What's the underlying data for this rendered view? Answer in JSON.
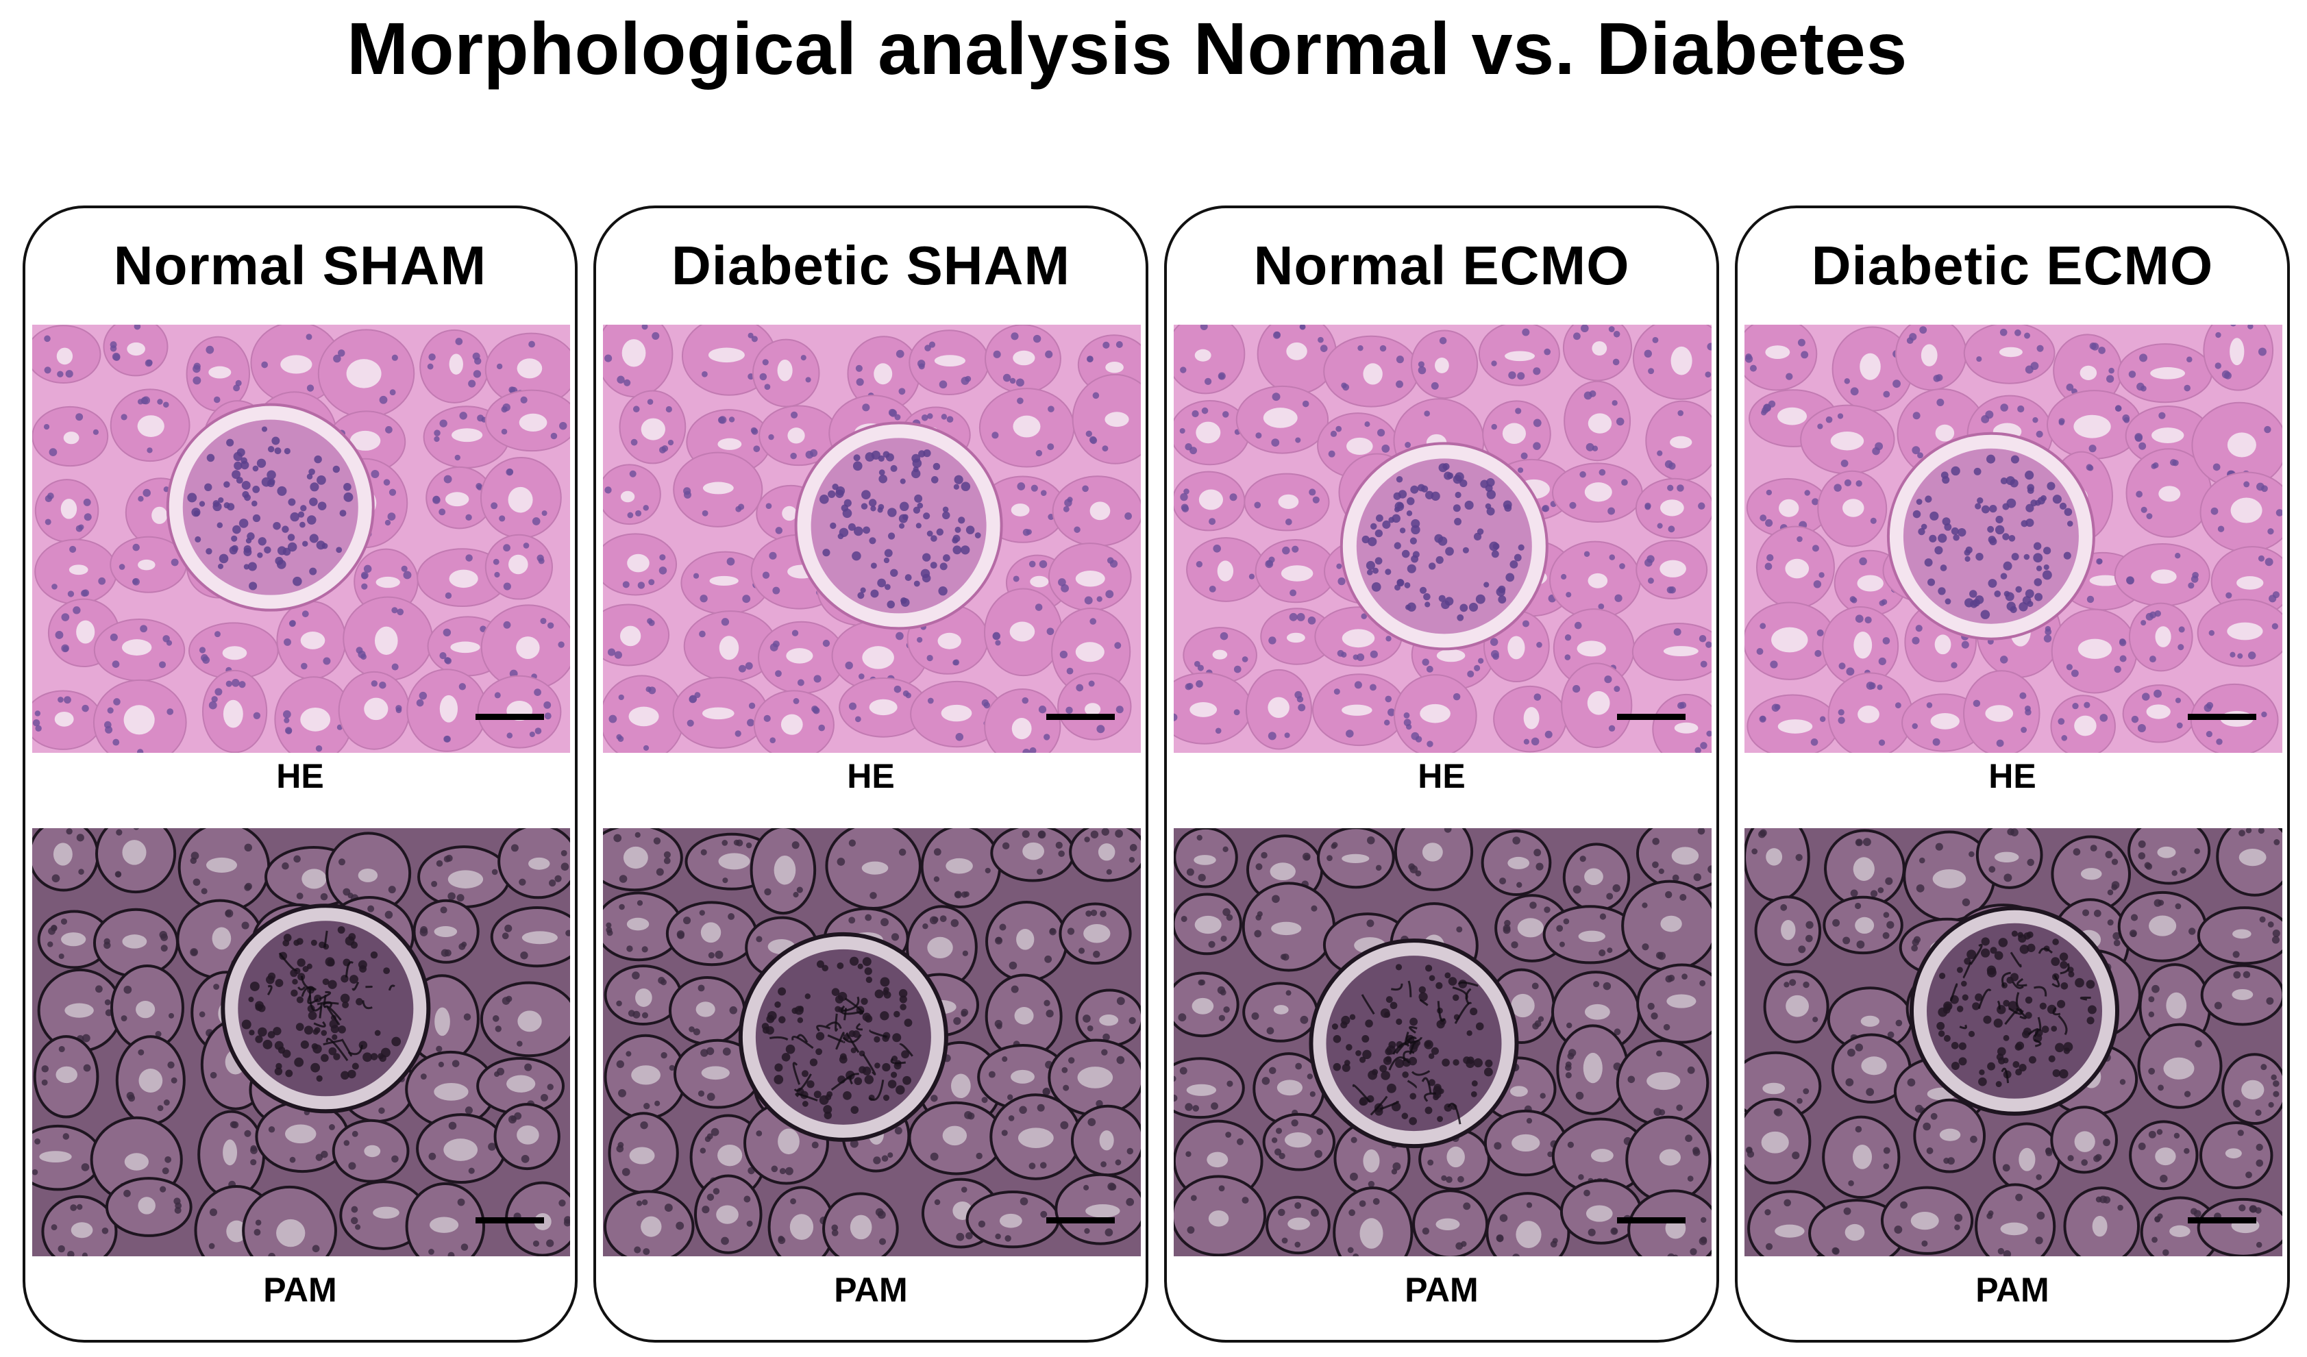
{
  "figure": {
    "title": "Morphological analysis  Normal vs. Diabetes",
    "panels": [
      {
        "title": "Normal SHAM",
        "he_label": "HE",
        "pam_label": "PAM"
      },
      {
        "title": "Diabetic SHAM",
        "he_label": "HE",
        "pam_label": "PAM"
      },
      {
        "title": "Normal ECMO",
        "he_label": "HE",
        "pam_label": "PAM"
      },
      {
        "title": "Diabetic ECMO",
        "he_label": "HE",
        "pam_label": "PAM"
      }
    ]
  },
  "colors": {
    "he_background": "#e6a9d6",
    "he_tubule": "#d98cc6",
    "he_nuclei": "#6b4f9a",
    "he_lumen": "#f3e6f0",
    "pam_background": "#7a5a78",
    "pam_tubule": "#8d6a8a",
    "pam_outline": "#1e1520",
    "pam_lumen": "#c9bcc8"
  }
}
